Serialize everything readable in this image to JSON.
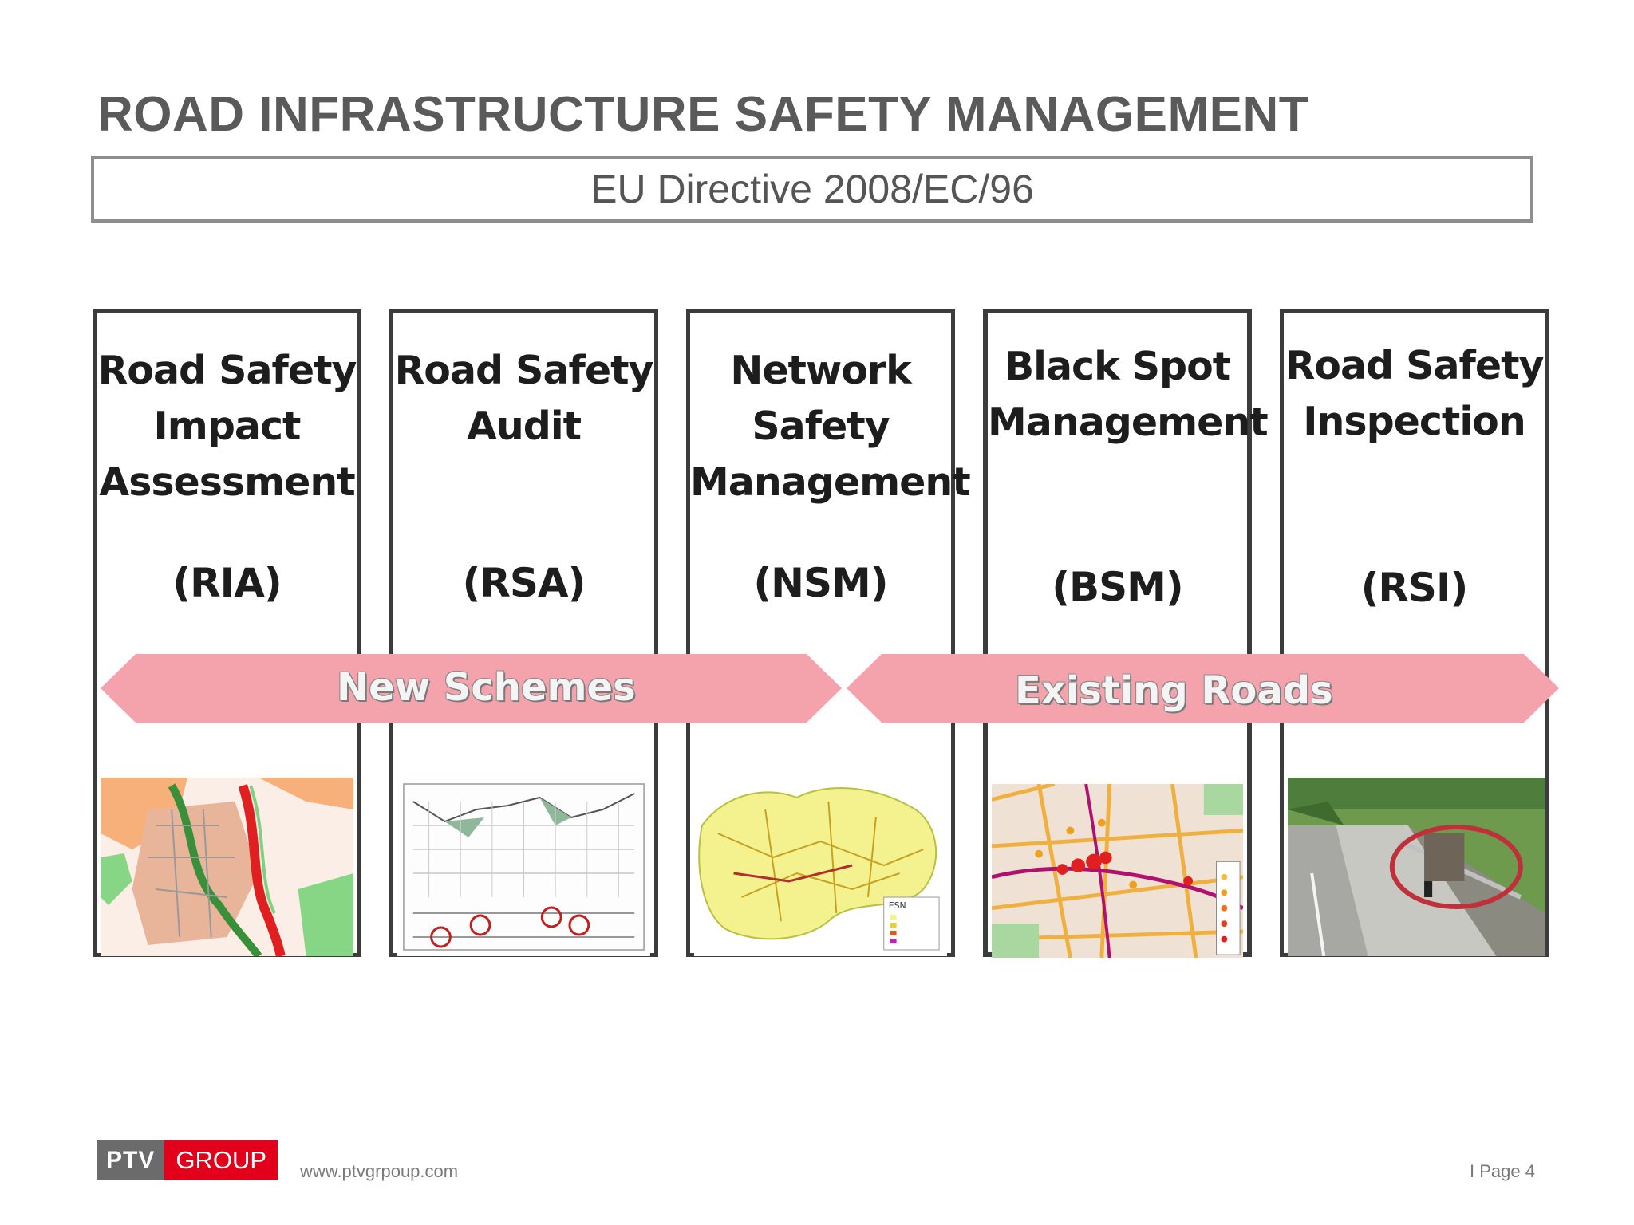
{
  "title": "ROAD INFRASTRUCTURE SAFETY MANAGEMENT",
  "subtitle": "EU Directive 2008/EC/96",
  "columns": [
    {
      "name_lines": [
        "Road Safety",
        "Impact",
        "Assessment"
      ],
      "abbr": "(RIA)"
    },
    {
      "name_lines": [
        "Road Safety",
        "Audit"
      ],
      "abbr": "(RSA)"
    },
    {
      "name_lines": [
        "Network",
        "Safety",
        "Management"
      ],
      "abbr": "(NSM)"
    },
    {
      "name_lines": [
        "Black Spot",
        "Management"
      ],
      "abbr": "(BSM)"
    },
    {
      "name_lines": [
        "Road Safety",
        "Inspection"
      ],
      "abbr": "(RSI)"
    }
  ],
  "arrows": {
    "new_schemes": "New Schemes",
    "existing_roads": "Existing Roads",
    "color": "#f4a3ad"
  },
  "thumbnails": {
    "nsm_legend": "ESN"
  },
  "footer": {
    "logo_left": "PTV",
    "logo_right": "GROUP",
    "url": "www.ptvgrpoup.com",
    "page": "I Page 4"
  }
}
